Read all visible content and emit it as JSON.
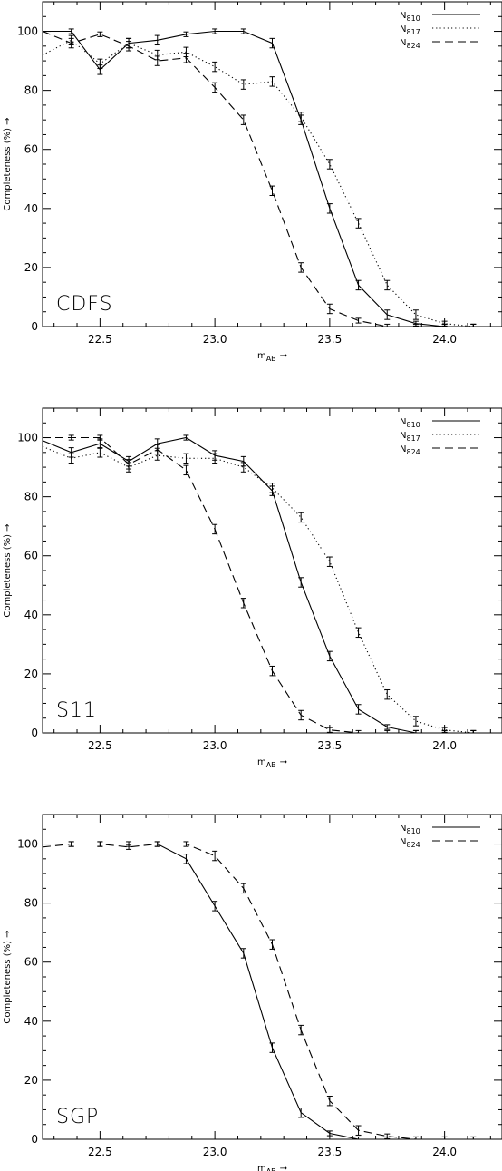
{
  "chart_data": [
    {
      "type": "line",
      "field_label": "CDFS",
      "xlabel": {
        "main": "m",
        "sub": "AB",
        "arrow": "→"
      },
      "ylabel": "Completeness  (%)  →",
      "xlim": [
        22.25,
        24.25
      ],
      "ylim": [
        0,
        110
      ],
      "xticks": [
        "22.5",
        "23.0",
        "23.5",
        "24.0"
      ],
      "yticks": [
        "0",
        "20",
        "40",
        "60",
        "80",
        "100"
      ],
      "legend_position": "top-right",
      "x": [
        22.25,
        22.375,
        22.5,
        22.625,
        22.75,
        22.875,
        23.0,
        23.125,
        23.25,
        23.375,
        23.5,
        23.625,
        23.75,
        23.875,
        24.0,
        24.125,
        24.25
      ],
      "series": [
        {
          "name": "N",
          "sub": "810",
          "dash": "solid",
          "values": [
            100,
            100,
            87,
            96,
            97,
            99,
            100,
            100,
            96,
            70,
            40,
            14,
            4,
            1,
            0,
            0,
            0
          ]
        },
        {
          "name": "N",
          "sub": "817",
          "dash": "dotted",
          "values": [
            92,
            97,
            89,
            96,
            92,
            93,
            88,
            82,
            83,
            71,
            55,
            35,
            14,
            4,
            1,
            0,
            0
          ]
        },
        {
          "name": "N",
          "sub": "824",
          "dash": "dashed",
          "values": [
            100,
            96,
            99,
            95,
            90,
            91,
            81,
            70,
            46,
            20,
            6,
            2,
            0,
            0,
            0,
            0,
            0
          ]
        }
      ]
    },
    {
      "type": "line",
      "field_label": "S11",
      "xlabel": {
        "main": "m",
        "sub": "AB",
        "arrow": "→"
      },
      "ylabel": "Completeness  (%)  →",
      "xlim": [
        22.25,
        24.25
      ],
      "ylim": [
        0,
        110
      ],
      "xticks": [
        "22.5",
        "23.0",
        "23.5",
        "24.0"
      ],
      "yticks": [
        "0",
        "20",
        "40",
        "60",
        "80",
        "100"
      ],
      "legend_position": "top-right",
      "x": [
        22.25,
        22.375,
        22.5,
        22.625,
        22.75,
        22.875,
        23.0,
        23.125,
        23.25,
        23.375,
        23.5,
        23.625,
        23.75,
        23.875,
        24.0,
        24.125,
        24.25
      ],
      "series": [
        {
          "name": "N",
          "sub": "810",
          "dash": "solid",
          "values": [
            99,
            95,
            98,
            92,
            98,
            100,
            94,
            92,
            82,
            51,
            26,
            8,
            2,
            0,
            0,
            0,
            0
          ]
        },
        {
          "name": "N",
          "sub": "817",
          "dash": "dotted",
          "values": [
            97,
            93,
            95,
            90,
            94,
            93,
            93,
            90,
            83,
            73,
            58,
            34,
            13,
            4,
            1,
            0,
            0
          ]
        },
        {
          "name": "N",
          "sub": "824",
          "dash": "dashed",
          "values": [
            100,
            100,
            100,
            91,
            96,
            89,
            69,
            44,
            21,
            6,
            1,
            0,
            0,
            0,
            0,
            0,
            0
          ]
        }
      ]
    },
    {
      "type": "line",
      "field_label": "SGP",
      "xlabel": {
        "main": "m",
        "sub": "AB",
        "arrow": "→"
      },
      "ylabel": "Completeness  (%)  →",
      "xlim": [
        22.25,
        24.25
      ],
      "ylim": [
        0,
        110
      ],
      "xticks": [
        "22.5",
        "23.0",
        "23.5",
        "24.0"
      ],
      "yticks": [
        "0",
        "20",
        "40",
        "60",
        "80",
        "100"
      ],
      "legend_position": "top-right",
      "x": [
        22.25,
        22.375,
        22.5,
        22.625,
        22.75,
        22.875,
        23.0,
        23.125,
        23.25,
        23.375,
        23.5,
        23.625,
        23.75,
        23.875,
        24.0,
        24.125,
        24.25
      ],
      "series": [
        {
          "name": "N",
          "sub": "810",
          "dash": "solid",
          "values": [
            100,
            100,
            100,
            100,
            100,
            95,
            79,
            63,
            31,
            9,
            2,
            0,
            0,
            0,
            0,
            0,
            0
          ]
        },
        {
          "name": "N",
          "sub": "824",
          "dash": "dashed",
          "values": [
            99,
            100,
            100,
            99,
            100,
            100,
            96,
            85,
            66,
            37,
            13,
            3,
            1,
            0,
            0,
            0,
            0
          ]
        }
      ]
    }
  ]
}
